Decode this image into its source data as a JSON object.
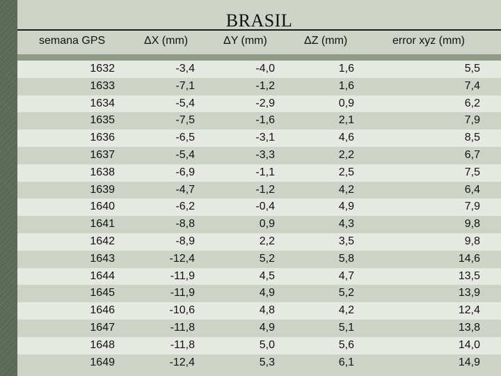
{
  "title": "BRASIL",
  "table": {
    "headers": [
      "semana GPS",
      "ΔX (mm)",
      "ΔY (mm)",
      "ΔZ (mm)",
      "error xyz (mm)"
    ],
    "rows": [
      [
        "1632",
        "-3,4",
        "-4,0",
        "1,6",
        "5,5"
      ],
      [
        "1633",
        "-7,1",
        "-1,2",
        "1,6",
        "7,4"
      ],
      [
        "1634",
        "-5,4",
        "-2,9",
        "0,9",
        "6,2"
      ],
      [
        "1635",
        "-7,5",
        "-1,6",
        "2,1",
        "7,9"
      ],
      [
        "1636",
        "-6,5",
        "-3,1",
        "4,6",
        "8,5"
      ],
      [
        "1637",
        "-5,4",
        "-3,3",
        "2,2",
        "6,7"
      ],
      [
        "1638",
        "-6,9",
        "-1,1",
        "2,5",
        "7,5"
      ],
      [
        "1639",
        "-4,7",
        "-1,2",
        "4,2",
        "6,4"
      ],
      [
        "1640",
        "-6,2",
        "-0,4",
        "4,9",
        "7,9"
      ],
      [
        "1641",
        "-8,8",
        "0,9",
        "4,3",
        "9,8"
      ],
      [
        "1642",
        "-8,9",
        "2,2",
        "3,5",
        "9,8"
      ],
      [
        "1643",
        "-12,4",
        "5,2",
        "5,8",
        "14,6"
      ],
      [
        "1644",
        "-11,9",
        "4,5",
        "4,7",
        "13,5"
      ],
      [
        "1645",
        "-11,9",
        "4,9",
        "5,2",
        "13,9"
      ],
      [
        "1646",
        "-10,6",
        "4,8",
        "4,2",
        "12,4"
      ],
      [
        "1647",
        "-11,8",
        "4,9",
        "5,1",
        "13,8"
      ],
      [
        "1648",
        "-11,8",
        "5,0",
        "5,6",
        "14,0"
      ],
      [
        "1649",
        "-12,4",
        "5,3",
        "6,1",
        "14,9"
      ]
    ]
  }
}
